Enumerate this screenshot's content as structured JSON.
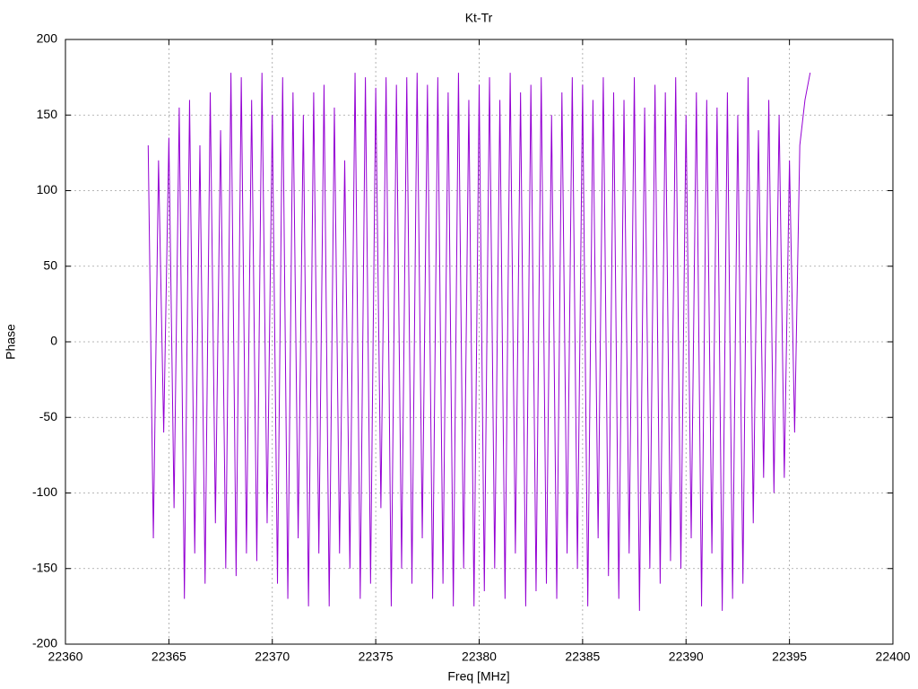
{
  "chart_data": {
    "type": "line",
    "title": "Kt-Tr",
    "x_label": "Freq [MHz]",
    "y_label": "Phase",
    "color": "#9400d3",
    "x": [
      22364,
      22364.25,
      22364.5,
      22364.75,
      22365,
      22365.25,
      22365.5,
      22365.75,
      22366,
      22366.25,
      22366.5,
      22366.75,
      22367,
      22367.25,
      22367.5,
      22367.75,
      22368,
      22368.25,
      22368.5,
      22368.75,
      22369,
      22369.25,
      22369.5,
      22369.75,
      22370,
      22370.25,
      22370.5,
      22370.75,
      22371,
      22371.25,
      22371.5,
      22371.75,
      22372,
      22372.25,
      22372.5,
      22372.75,
      22373,
      22373.25,
      22373.5,
      22373.75,
      22374,
      22374.25,
      22374.5,
      22374.75,
      22375,
      22375.25,
      22375.5,
      22375.75,
      22376,
      22376.25,
      22376.5,
      22376.75,
      22377,
      22377.25,
      22377.5,
      22377.75,
      22378,
      22378.25,
      22378.5,
      22378.75,
      22379,
      22379.25,
      22379.5,
      22379.75,
      22380,
      22380.25,
      22380.5,
      22380.75,
      22381,
      22381.25,
      22381.5,
      22381.75,
      22382,
      22382.25,
      22382.5,
      22382.75,
      22383,
      22383.25,
      22383.5,
      22383.75,
      22384,
      22384.25,
      22384.5,
      22384.75,
      22385,
      22385.25,
      22385.5,
      22385.75,
      22386,
      22386.25,
      22386.5,
      22386.75,
      22387,
      22387.25,
      22387.5,
      22387.75,
      22388,
      22388.25,
      22388.5,
      22388.75,
      22389,
      22389.25,
      22389.5,
      22389.75,
      22390,
      22390.25,
      22390.5,
      22390.75,
      22391,
      22391.25,
      22391.5,
      22391.75,
      22392,
      22392.25,
      22392.5,
      22392.75,
      22393,
      22393.25,
      22393.5,
      22393.75,
      22394,
      22394.25,
      22394.5,
      22394.75,
      22395,
      22395.25,
      22395.5,
      22395.75,
      22396
    ],
    "values": [
      130,
      -130,
      120,
      -60,
      135,
      -110,
      155,
      -170,
      160,
      -140,
      130,
      -160,
      165,
      -120,
      140,
      -150,
      178,
      -155,
      175,
      -140,
      160,
      -145,
      178,
      -120,
      150,
      -160,
      175,
      -170,
      165,
      -130,
      150,
      -175,
      165,
      -140,
      170,
      -175,
      155,
      -140,
      120,
      -150,
      178,
      -170,
      175,
      -160,
      168,
      -110,
      175,
      -175,
      170,
      -150,
      175,
      -160,
      178,
      -130,
      170,
      -170,
      175,
      -160,
      165,
      -175,
      178,
      -150,
      160,
      -175,
      170,
      -165,
      175,
      -150,
      160,
      -170,
      178,
      -140,
      165,
      -175,
      170,
      -165,
      175,
      -160,
      150,
      -170,
      165,
      -140,
      175,
      -150,
      170,
      -175,
      160,
      -130,
      175,
      -155,
      165,
      -170,
      160,
      -140,
      175,
      -178,
      155,
      -150,
      170,
      -160,
      165,
      -145,
      175,
      -150,
      150,
      -130,
      165,
      -175,
      160,
      -140,
      155,
      -178,
      165,
      -170,
      150,
      -160,
      175,
      -120,
      140,
      -90,
      160,
      -100,
      150,
      -90,
      120,
      -60,
      130,
      160,
      178
    ],
    "xlim": [
      22360,
      22400
    ],
    "xticks": [
      22360,
      22365,
      22370,
      22375,
      22380,
      22385,
      22390,
      22395,
      22400
    ],
    "ylim": [
      -200,
      200
    ],
    "yticks": [
      -200,
      -150,
      -100,
      -50,
      0,
      50,
      100,
      150,
      200
    ],
    "grid": true
  }
}
